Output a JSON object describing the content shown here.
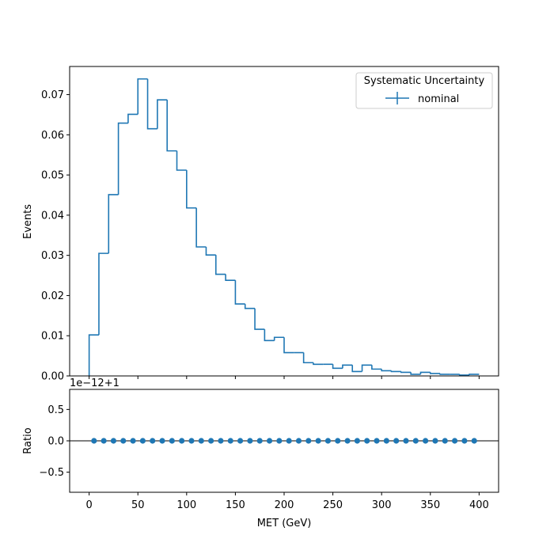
{
  "chart_data": [
    {
      "type": "histogram",
      "panel": "main",
      "ylabel": "Events",
      "xlim": [
        -20,
        420
      ],
      "ylim": [
        0,
        0.077
      ],
      "yticks": [
        0.0,
        0.01,
        0.02,
        0.03,
        0.04,
        0.05,
        0.06,
        0.07
      ],
      "ytick_labels": [
        "0.00",
        "0.01",
        "0.02",
        "0.03",
        "0.04",
        "0.05",
        "0.06",
        "0.07"
      ],
      "xticks": [
        0,
        50,
        100,
        150,
        200,
        250,
        300,
        350,
        400
      ],
      "color": "#1f77b4",
      "legend": {
        "title": "Systematic Uncertainty",
        "position": "top-right",
        "entries": [
          "nominal"
        ]
      },
      "bin_edges": [
        0,
        10,
        20,
        30,
        40,
        50,
        60,
        70,
        80,
        90,
        100,
        110,
        120,
        130,
        140,
        150,
        160,
        170,
        180,
        190,
        200,
        210,
        220,
        230,
        240,
        250,
        260,
        270,
        280,
        290,
        300,
        310,
        320,
        330,
        340,
        350,
        360,
        370,
        380,
        390,
        400
      ],
      "series": [
        {
          "name": "nominal",
          "values": [
            0.0102,
            0.0305,
            0.0451,
            0.0629,
            0.0651,
            0.0739,
            0.0615,
            0.0687,
            0.056,
            0.0512,
            0.0418,
            0.0321,
            0.0301,
            0.0253,
            0.0238,
            0.0179,
            0.0168,
            0.0116,
            0.0088,
            0.0096,
            0.0058,
            0.0058,
            0.0033,
            0.0029,
            0.0029,
            0.0019,
            0.0027,
            0.0011,
            0.0027,
            0.0017,
            0.0013,
            0.0011,
            0.0009,
            0.0004,
            0.0009,
            0.0006,
            0.0004,
            0.0004,
            0.0002,
            0.0004
          ]
        }
      ]
    },
    {
      "type": "scatter",
      "panel": "ratio",
      "ylabel": "Ratio",
      "xlabel": "MET (GeV)",
      "offset_text": "1e−12+1",
      "xlim": [
        -20,
        420
      ],
      "ylim": [
        -0.82,
        0.82
      ],
      "yticks": [
        -0.5,
        0.0,
        0.5
      ],
      "ytick_labels": [
        "−0.5",
        "0.0",
        "0.5"
      ],
      "xticks": [
        0,
        50,
        100,
        150,
        200,
        250,
        300,
        350,
        400
      ],
      "xtick_labels": [
        "0",
        "50",
        "100",
        "150",
        "200",
        "250",
        "300",
        "350",
        "400"
      ],
      "reference_line": 0.0,
      "color": "#1f77b4",
      "series": [
        {
          "x": [
            5,
            15,
            25,
            35,
            45,
            55,
            65,
            75,
            85,
            95,
            105,
            115,
            125,
            135,
            145,
            155,
            165,
            175,
            185,
            195,
            205,
            215,
            225,
            235,
            245,
            255,
            265,
            275,
            285,
            295,
            305,
            315,
            325,
            335,
            345,
            355,
            365,
            375,
            385,
            395
          ],
          "y": [
            0,
            0,
            0,
            0,
            0,
            0,
            0,
            0,
            0,
            0,
            0,
            0,
            0,
            0,
            0,
            0,
            0,
            0,
            0,
            0,
            0,
            0,
            0,
            0,
            0,
            0,
            0,
            0,
            0,
            0,
            0,
            0,
            0,
            0,
            0,
            0,
            0,
            0,
            0,
            0
          ]
        }
      ]
    }
  ]
}
